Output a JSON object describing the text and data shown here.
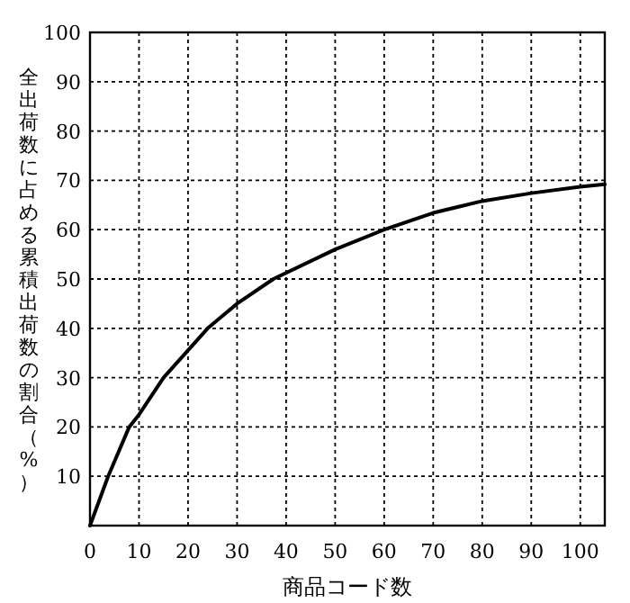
{
  "chart_data": {
    "type": "line",
    "xlabel": "商品コード数",
    "ylabel": "全出荷数に占める累積出荷数の割合（%）",
    "x": [
      0,
      3.7,
      8,
      10,
      15,
      24,
      30,
      37.4,
      50,
      60,
      70,
      80,
      90,
      100,
      105
    ],
    "series": [
      {
        "color": "#000000",
        "values": [
          0,
          10,
          20,
          22.5,
          30,
          40,
          45,
          50,
          56,
          60,
          63.4,
          65.8,
          67.4,
          68.7,
          69.2
        ]
      }
    ],
    "xlim": [
      0,
      105
    ],
    "xticks": [
      0,
      10,
      20,
      30,
      40,
      50,
      60,
      70,
      80,
      90,
      100
    ],
    "ylim": [
      0,
      100
    ],
    "yticks": [
      {
        "value": 0,
        "label": null
      },
      10,
      20,
      30,
      40,
      50,
      60,
      70,
      80,
      90,
      100
    ],
    "grid": true,
    "line_style": "solid",
    "marker": "none"
  }
}
